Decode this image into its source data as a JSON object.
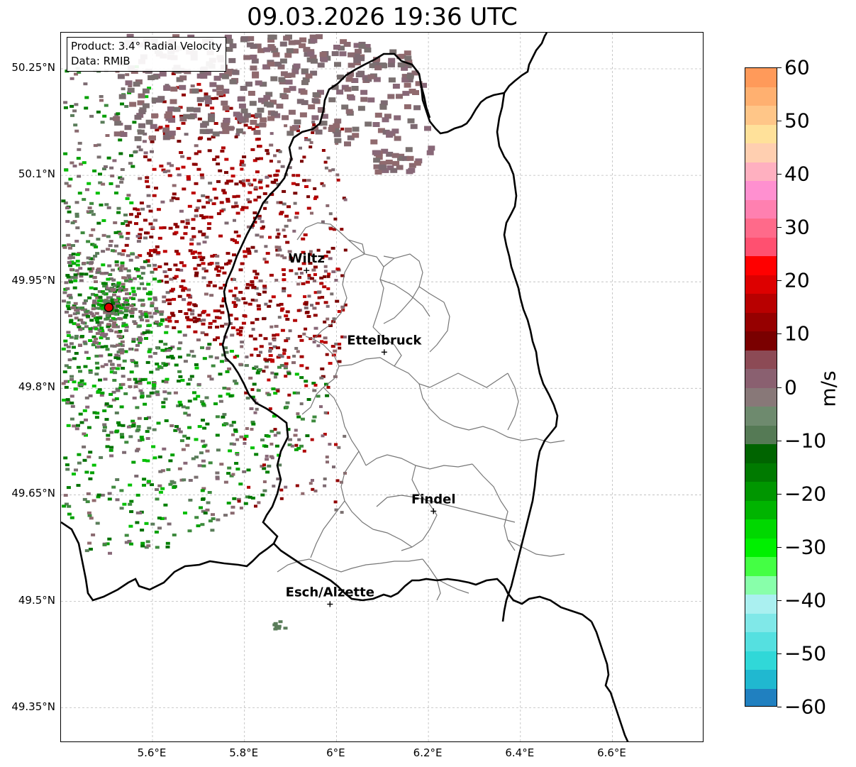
{
  "title": "09.03.2026 19:36 UTC",
  "info": {
    "product": "Product: 3.4° Radial Velocity",
    "source": "Data: RMIB"
  },
  "lat_labels": [
    "50.25°N",
    "50.1°N",
    "49.95°N",
    "49.8°N",
    "49.65°N",
    "49.5°N",
    "49.35°N"
  ],
  "lon_labels": [
    "5.6°E",
    "5.8°E",
    "6°E",
    "6.2°E",
    "6.4°E",
    "6.6°E"
  ],
  "cities": [
    {
      "name": "Wiltz",
      "lon": 5.935,
      "lat": 49.966
    },
    {
      "name": "Ettelbruck",
      "lon": 6.104,
      "lat": 49.851
    },
    {
      "name": "Findel",
      "lon": 6.211,
      "lat": 49.627
    },
    {
      "name": "Esch/Alzette",
      "lon": 5.986,
      "lat": 49.496
    }
  ],
  "radar_site": {
    "lon": 5.505,
    "lat": 49.914
  },
  "colorbar": {
    "unit": "m/s",
    "min": -60,
    "max": 60,
    "tick_labels": [
      "60",
      "50",
      "40",
      "30",
      "20",
      "10",
      "0",
      "−10",
      "−20",
      "−30",
      "−40",
      "−50",
      "−60"
    ],
    "colors_top_to_bottom": [
      "#ff9a5a",
      "#ffb070",
      "#ffc688",
      "#ffe19a",
      "#ffcfb0",
      "#ffb0c0",
      "#ff90d0",
      "#ff80b0",
      "#ff6a8a",
      "#ff5070",
      "#ff0000",
      "#dd0000",
      "#b80000",
      "#960000",
      "#7a0000",
      "#8c4a55",
      "#8a6070",
      "#887878",
      "#6e8a6e",
      "#557a55",
      "#006400",
      "#007a00",
      "#009600",
      "#00b400",
      "#00d800",
      "#00f000",
      "#44ff44",
      "#88ffaa",
      "#aaf0f0",
      "#80e8e8",
      "#55e0e0",
      "#30d8d8",
      "#20b8d0",
      "#2080c0"
    ]
  }
}
